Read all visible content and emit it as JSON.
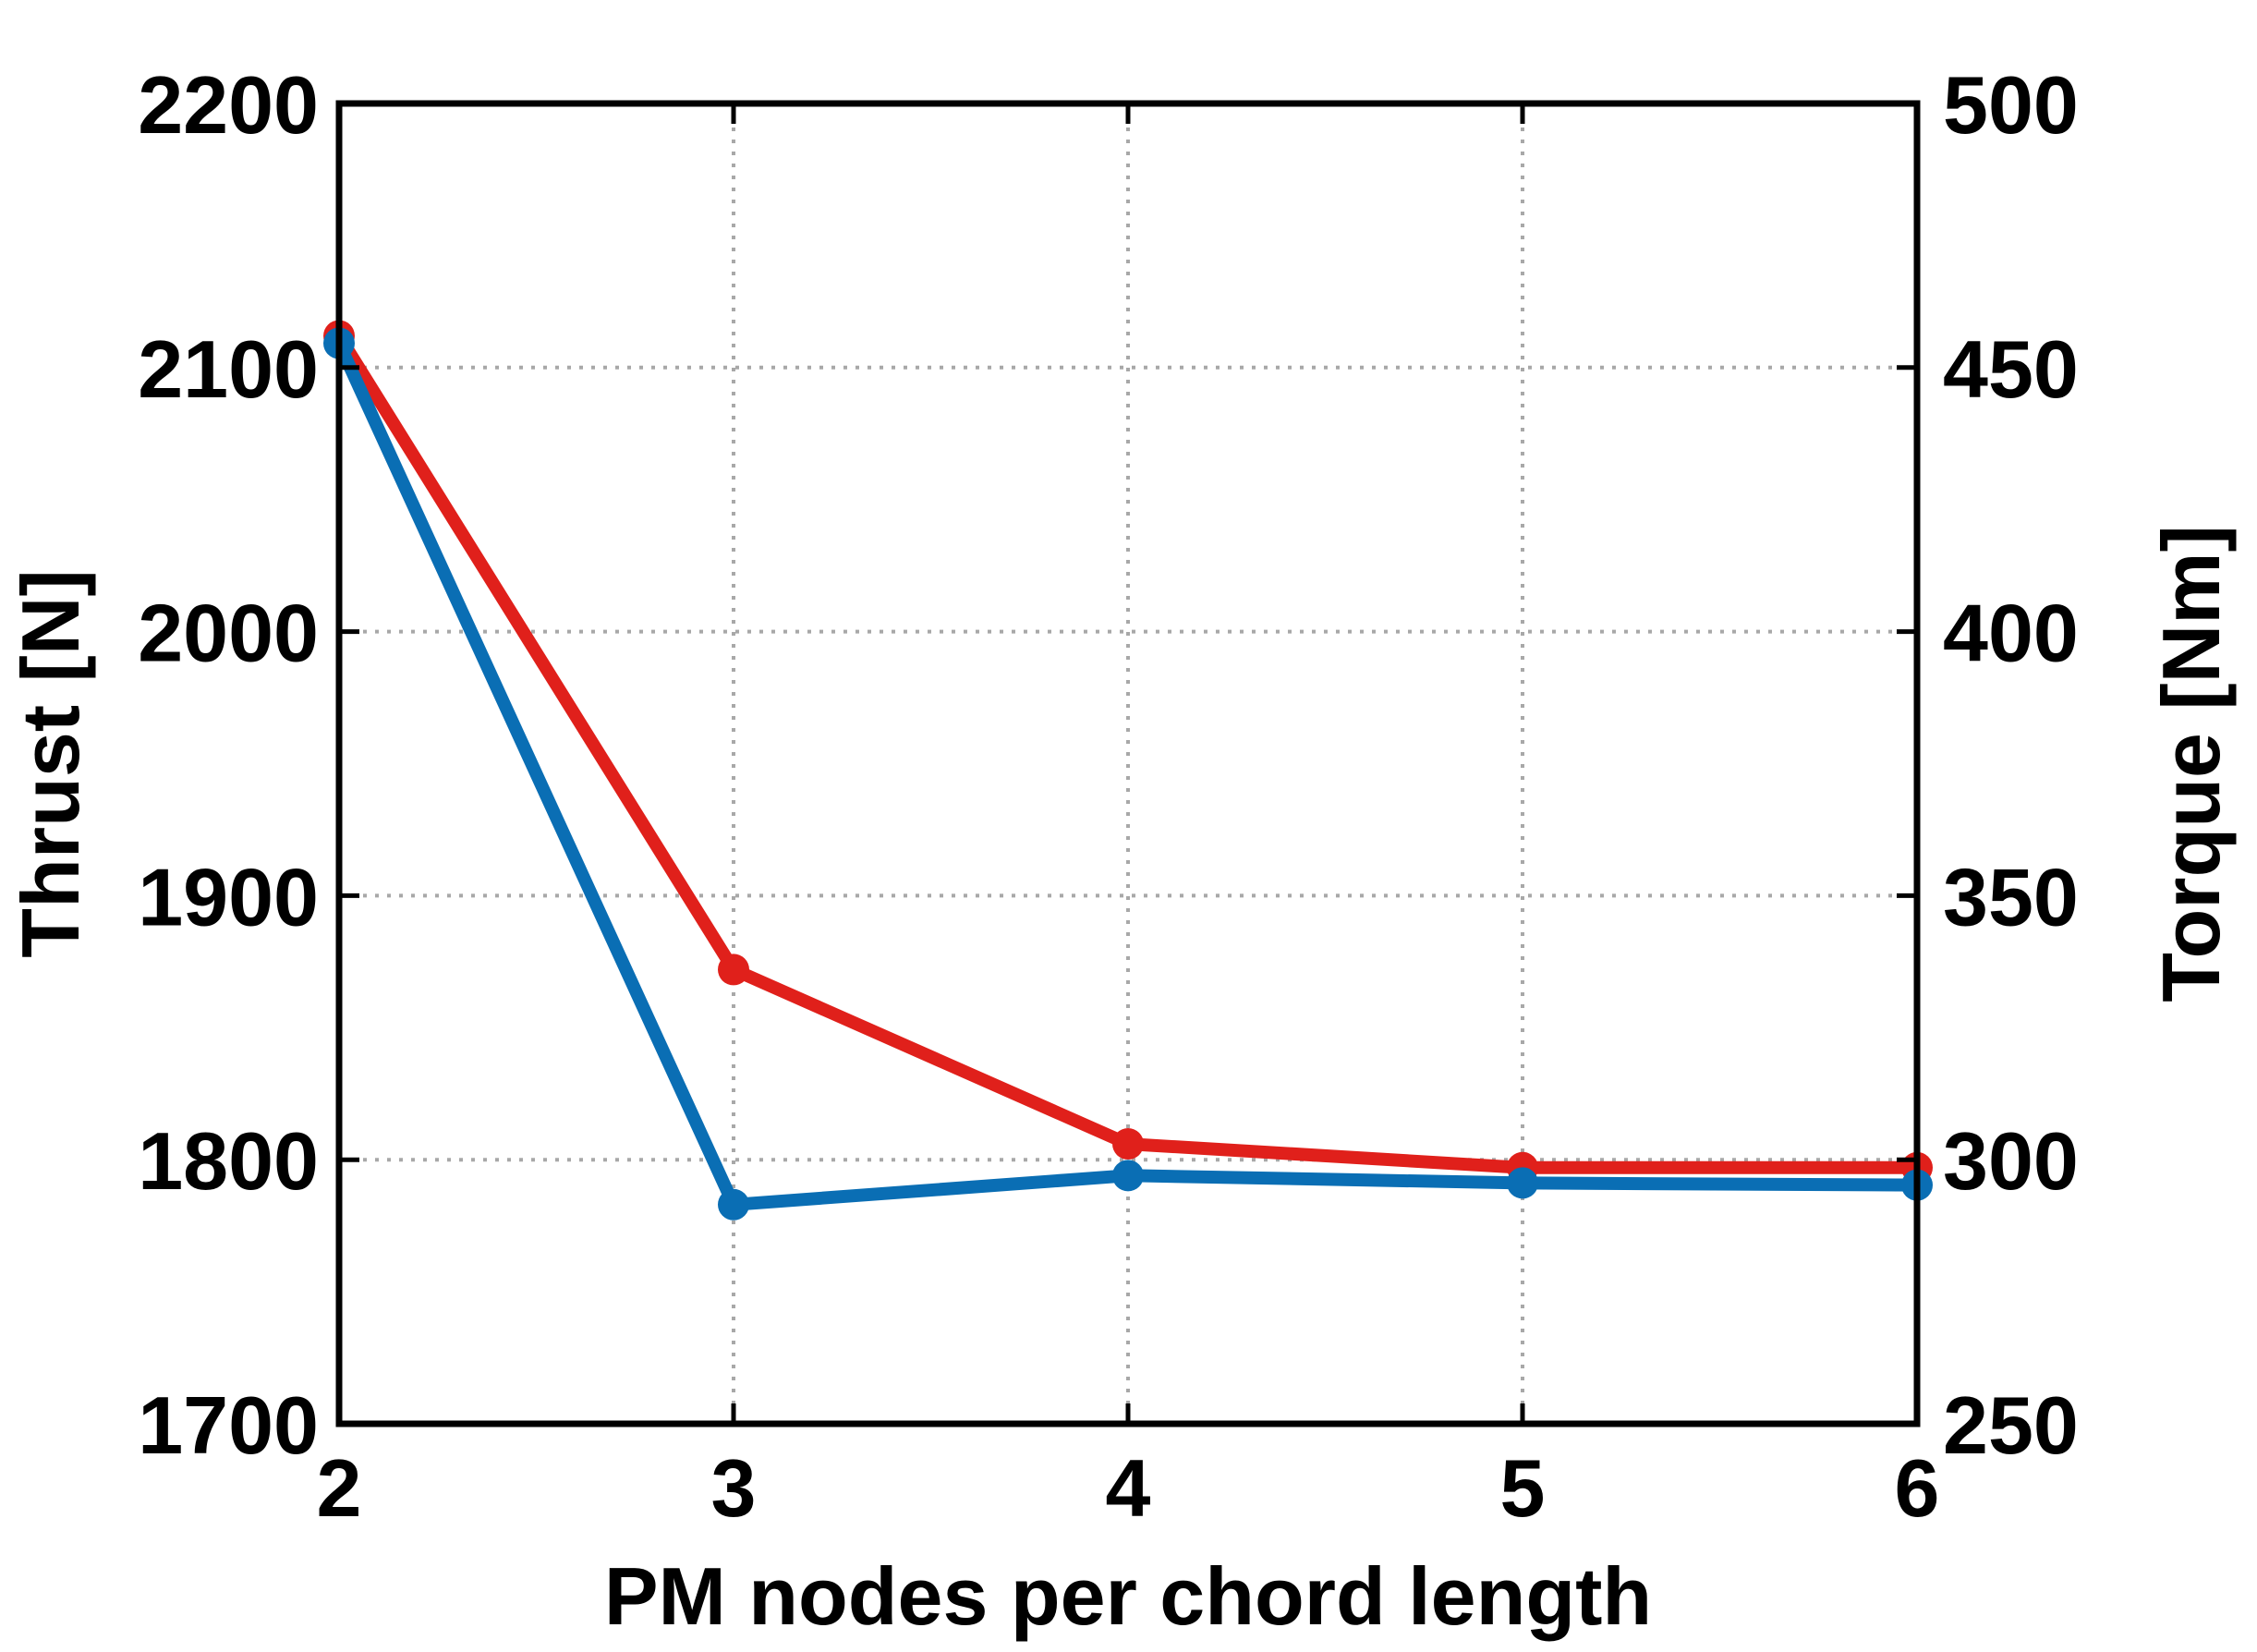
{
  "chart_data": {
    "type": "line",
    "title": "",
    "xlabel": "PM nodes per chord length",
    "ylabel_left": "Thrust [N]",
    "ylabel_right": "Torque [Nm]",
    "x": [
      2,
      3,
      4,
      5,
      6
    ],
    "xlim": [
      2,
      6
    ],
    "ylim_left": [
      1700,
      2200
    ],
    "ylim_right": [
      250,
      500
    ],
    "x_ticks": [
      "2",
      "3",
      "4",
      "5",
      "6"
    ],
    "y_ticks_left": [
      "1700",
      "1800",
      "1900",
      "2000",
      "2100",
      "2200"
    ],
    "y_ticks_right": [
      "250",
      "300",
      "350",
      "400",
      "450",
      "500"
    ],
    "grid": true,
    "series": [
      {
        "axis": "left",
        "color": "#e0201b",
        "values": [
          2112,
          1872,
          1806,
          1797,
          1797
        ]
      },
      {
        "axis": "right",
        "color": "#0a6eb4",
        "values": [
          454.6,
          291.5,
          297.0,
          295.6,
          295.2
        ]
      }
    ]
  }
}
